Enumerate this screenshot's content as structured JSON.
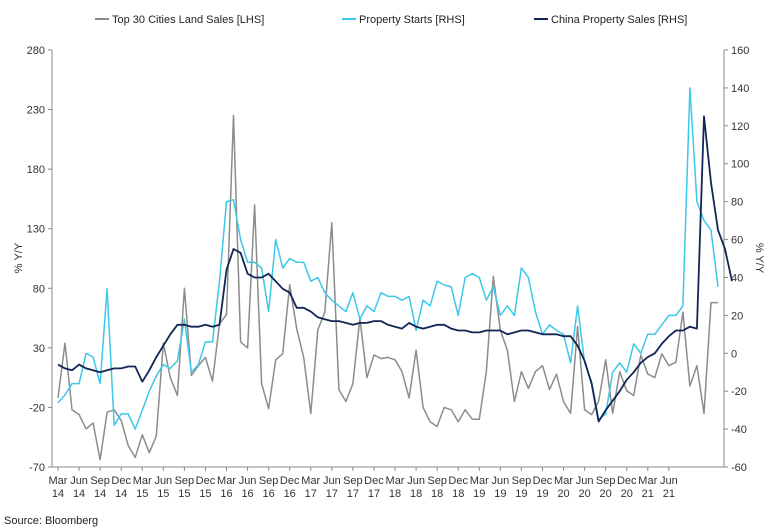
{
  "chart_data": {
    "type": "line",
    "legend_position": "top",
    "grid": false,
    "source": "Source: Bloomberg",
    "left_axis": {
      "label": "% Y/Y",
      "range": [
        -70,
        280
      ],
      "ticks": [
        "280",
        "230",
        "180",
        "130",
        "80",
        "30",
        "-20",
        "-70"
      ]
    },
    "right_axis": {
      "label": "% Y/Y",
      "range": [
        -60,
        160
      ],
      "ticks": [
        "160",
        "140",
        "120",
        "100",
        "80",
        "60",
        "40",
        "20",
        "0",
        "-20",
        "-40",
        "-60"
      ]
    },
    "x_ticks": [
      {
        "month": "Mar",
        "year": "14"
      },
      {
        "month": "Jun",
        "year": "14"
      },
      {
        "month": "Sep",
        "year": "14"
      },
      {
        "month": "Dec",
        "year": "14"
      },
      {
        "month": "Mar",
        "year": "15"
      },
      {
        "month": "Jun",
        "year": "15"
      },
      {
        "month": "Sep",
        "year": "15"
      },
      {
        "month": "Dec",
        "year": "15"
      },
      {
        "month": "Mar",
        "year": "16"
      },
      {
        "month": "Jun",
        "year": "16"
      },
      {
        "month": "Sep",
        "year": "16"
      },
      {
        "month": "Dec",
        "year": "16"
      },
      {
        "month": "Mar",
        "year": "17"
      },
      {
        "month": "Jun",
        "year": "17"
      },
      {
        "month": "Sep",
        "year": "17"
      },
      {
        "month": "Dec",
        "year": "17"
      },
      {
        "month": "Mar",
        "year": "18"
      },
      {
        "month": "Jun",
        "year": "18"
      },
      {
        "month": "Sep",
        "year": "18"
      },
      {
        "month": "Dec",
        "year": "18"
      },
      {
        "month": "Mar",
        "year": "19"
      },
      {
        "month": "Jun",
        "year": "19"
      },
      {
        "month": "Sep",
        "year": "19"
      },
      {
        "month": "Dec",
        "year": "19"
      },
      {
        "month": "Mar",
        "year": "20"
      },
      {
        "month": "Jun",
        "year": "20"
      },
      {
        "month": "Sep",
        "year": "20"
      },
      {
        "month": "Dec",
        "year": "20"
      },
      {
        "month": "Mar",
        "year": "21"
      },
      {
        "month": "Jun",
        "year": "21"
      }
    ],
    "x_start": "2014-03",
    "series": [
      {
        "name": "Top 30 Cities Land Sales [LHS]",
        "axis": "left",
        "color": "#8c8c8c",
        "values": [
          -12,
          34,
          -22,
          -26,
          -38,
          -33,
          -64,
          -24,
          -22,
          -31,
          -52,
          -62,
          -43,
          -58,
          -44,
          34,
          5,
          -10,
          80,
          7,
          15,
          22,
          2,
          50,
          58,
          225,
          35,
          30,
          150,
          0,
          -21,
          20,
          25,
          83,
          46,
          22,
          -25,
          45,
          60,
          135,
          -5,
          -15,
          0,
          55,
          5,
          24,
          21,
          22,
          20,
          10,
          -12,
          28,
          -20,
          -32,
          -36,
          -20,
          -22,
          -32,
          -22,
          -30,
          -30,
          10,
          90,
          45,
          28,
          -15,
          10,
          -4,
          10,
          15,
          -5,
          8,
          -15,
          -25,
          48,
          -22,
          -26,
          -15,
          20,
          -25,
          10,
          -6,
          -10,
          24,
          8,
          5,
          25,
          15,
          18,
          60,
          -2,
          15,
          -25,
          68,
          68
        ]
      },
      {
        "name": "Property Starts [RHS]",
        "axis": "right",
        "color": "#3cc8e8",
        "values": [
          -26,
          -22,
          -16,
          -16,
          0,
          -2,
          -16,
          34,
          -38,
          -32,
          -32,
          -40,
          -30,
          -20,
          -12,
          -6,
          -8,
          -4,
          18,
          -10,
          -6,
          6,
          6,
          38,
          80,
          81,
          60,
          48,
          48,
          45,
          22,
          60,
          45,
          50,
          48,
          48,
          38,
          40,
          32,
          28,
          25,
          22,
          32,
          18,
          25,
          22,
          32,
          30,
          30,
          28,
          30,
          12,
          28,
          25,
          38,
          36,
          35,
          20,
          40,
          42,
          40,
          28,
          35,
          20,
          25,
          20,
          45,
          40,
          22,
          10,
          15,
          12,
          10,
          -5,
          25,
          -5,
          -15,
          -35,
          -32,
          -10,
          -5,
          -10,
          5,
          0,
          10,
          10,
          15,
          20,
          20,
          25,
          140,
          80,
          70,
          65,
          35
        ]
      },
      {
        "name": "China Property Sales [RHS]",
        "axis": "right",
        "color": "#122554",
        "values": [
          -6,
          -8,
          -9,
          -6,
          -8,
          -9,
          -10,
          -9,
          -8,
          -8,
          -7,
          -7,
          -15,
          -9,
          -2,
          4,
          10,
          15,
          15,
          14,
          14,
          15,
          14,
          15,
          44,
          55,
          53,
          42,
          40,
          40,
          42,
          38,
          34,
          32,
          24,
          24,
          22,
          19,
          18,
          17,
          17,
          16,
          15,
          16,
          16,
          17,
          17,
          15,
          14,
          13,
          16,
          14,
          13,
          14,
          15,
          15,
          13,
          12,
          12,
          11,
          11,
          12,
          12,
          12,
          10,
          11,
          12,
          12,
          11,
          10,
          10,
          10,
          9,
          9,
          4,
          -4,
          -16,
          -36,
          -30,
          -25,
          -20,
          -14,
          -10,
          -5,
          -2,
          0,
          5,
          9,
          12,
          12,
          14,
          13,
          125,
          90,
          65,
          55,
          38
        ]
      }
    ]
  }
}
